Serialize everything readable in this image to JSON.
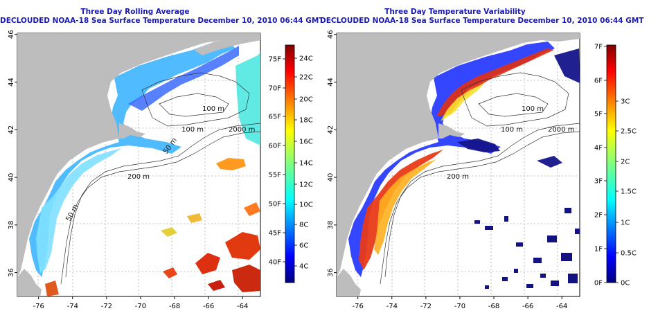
{
  "panels": [
    {
      "title_line1": "Three Day Rolling Average",
      "title_line2": "DECLOUDED NOAA-18 Sea Surface Temperature December 10, 2010 06:44 GMT",
      "colorbar": {
        "type": "jet",
        "fahrenheit_ticks": [
          "75F",
          "70F",
          "65F",
          "60F",
          "55F",
          "50F",
          "45F",
          "40F"
        ],
        "celsius_ticks": [
          "24C",
          "22C",
          "20C",
          "18C",
          "16C",
          "14C",
          "12C",
          "10C",
          "8C",
          "6C",
          "4C"
        ]
      },
      "contour_labels": [
        "100 m",
        "100 m",
        "2000 m",
        "200 m",
        "50 m",
        "50 m"
      ]
    },
    {
      "title_line1": "Three Day Temperature Variability",
      "title_line2": "DECLOUDED NOAA-18 Sea Surface Temperature December 10, 2010 06:44 GMT",
      "colorbar": {
        "type": "jet",
        "fahrenheit_ticks": [
          "7F",
          "6F",
          "5F",
          "4F",
          "3F",
          "2F",
          "1F",
          "0F"
        ],
        "celsius_ticks": [
          "3C",
          "2.5C",
          "2C",
          "1.5C",
          "1C",
          "0.5C",
          "0C"
        ]
      },
      "contour_labels": [
        "100 m",
        "100 m",
        "2000 m",
        "200 m"
      ]
    }
  ],
  "axes": {
    "longitude_ticks": [
      "-76",
      "-74",
      "-72",
      "-70",
      "-68",
      "-66",
      "-64"
    ],
    "latitude_ticks": [
      "46",
      "44",
      "42",
      "40",
      "38",
      "36"
    ]
  },
  "colors": {
    "title": "#1a1ab0",
    "land": "#bdbdbd",
    "ocean": "#ffffff",
    "contour": "#333333",
    "grid": "#aaaaaa"
  }
}
